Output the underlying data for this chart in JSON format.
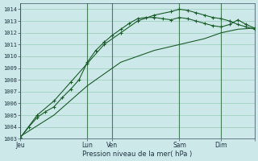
{
  "xlabel": "Pression niveau de la mer( hPa )",
  "bg_color": "#cce8e8",
  "grid_color": "#99ccbb",
  "line_color": "#1a5c2a",
  "ylim": [
    1003,
    1014.5
  ],
  "ytick_vals": [
    1003,
    1004,
    1005,
    1006,
    1007,
    1008,
    1009,
    1010,
    1011,
    1012,
    1013,
    1014
  ],
  "xlim": [
    0,
    28
  ],
  "vline_positions": [
    0,
    8,
    11,
    19,
    24,
    28
  ],
  "day_ticks": [
    0,
    8,
    11,
    19,
    24,
    28
  ],
  "day_labels": [
    "Jeu",
    "Lun",
    "Ven",
    "Sam",
    "Dim",
    ""
  ],
  "series1_x": [
    0,
    1,
    2,
    3,
    4,
    5,
    6,
    7,
    8,
    9,
    10,
    11,
    12,
    13,
    14,
    15,
    16,
    17,
    18,
    19,
    20,
    21,
    22,
    23,
    24,
    25,
    26,
    27,
    28
  ],
  "series1_y": [
    1003.1,
    1004.0,
    1004.8,
    1005.3,
    1005.7,
    1006.5,
    1007.2,
    1008.0,
    1009.5,
    1010.5,
    1011.2,
    1011.8,
    1012.3,
    1012.8,
    1013.2,
    1013.3,
    1013.3,
    1013.2,
    1013.1,
    1013.3,
    1013.2,
    1013.0,
    1012.8,
    1012.6,
    1012.5,
    1012.7,
    1013.1,
    1012.7,
    1012.4
  ],
  "series2_x": [
    0,
    2,
    4,
    6,
    8,
    10,
    12,
    14,
    16,
    18,
    19,
    20,
    21,
    22,
    23,
    24,
    25,
    26,
    27,
    28
  ],
  "series2_y": [
    1003.1,
    1005.0,
    1006.2,
    1007.8,
    1009.4,
    1011.0,
    1012.0,
    1013.0,
    1013.5,
    1013.8,
    1014.0,
    1013.9,
    1013.7,
    1013.5,
    1013.3,
    1013.2,
    1013.0,
    1012.7,
    1012.5,
    1012.3
  ],
  "series3_x": [
    0,
    4,
    8,
    12,
    16,
    19,
    22,
    24,
    26,
    28
  ],
  "series3_y": [
    1003.2,
    1005.0,
    1007.5,
    1009.5,
    1010.5,
    1011.0,
    1011.5,
    1012.0,
    1012.3,
    1012.4
  ]
}
